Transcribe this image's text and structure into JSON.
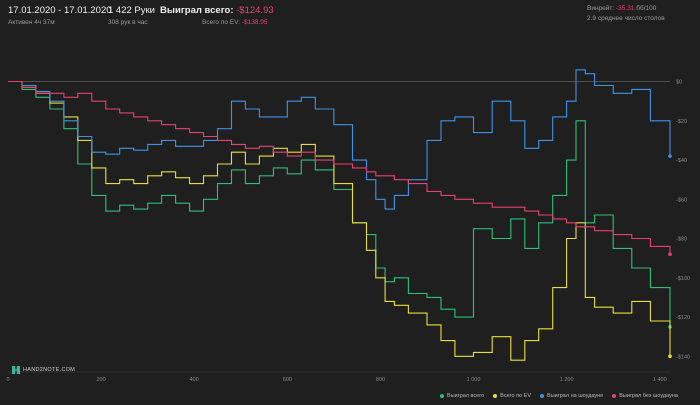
{
  "header": {
    "date_range": "17.01.2020 - 17.01.2020",
    "active": "Активен 4ч 37м",
    "hands": "1 422 Руки",
    "hands_per_hour": "308 рук в час",
    "won_label": "Выиграл всего:",
    "won_value": "-$124.93",
    "ev_label": "Всего по EV:",
    "ev_value": "-$138.95",
    "bb100_label": "Винрейт:",
    "bb100_value": "-35.31",
    "bb100_tail": "бб/100",
    "avg_tables": "2.9 среднее число столов"
  },
  "logo": "HAND2NOTE.COM",
  "colors": {
    "background": "#1f1f1f",
    "green": "#2fbf7a",
    "yellow": "#e8df3a",
    "blue": "#3f93e6",
    "pink": "#e8426e"
  },
  "chart_data": {
    "type": "line",
    "xlim": [
      0,
      1422
    ],
    "ylim": [
      -148,
      12
    ],
    "x_ticks": [
      0,
      200,
      400,
      600,
      800,
      1000,
      1200,
      1400
    ],
    "x_tick_labels": [
      "0",
      "200",
      "400",
      "600",
      "800",
      "1 000",
      "1 200",
      "1 400"
    ],
    "y_ticks": [
      0,
      -20,
      -40,
      -60,
      -80,
      -100,
      -120,
      -140
    ],
    "y_tick_labels": [
      "$0",
      "-$20",
      "-$40",
      "-$60",
      "-$80",
      "-$100",
      "-$120",
      "-$140"
    ],
    "grid": false,
    "legend_position": "bottom-right",
    "series": [
      {
        "name": "Выиграл всего",
        "color": "#2fbf7a",
        "x": [
          0,
          30,
          60,
          90,
          120,
          150,
          180,
          210,
          240,
          270,
          300,
          330,
          360,
          390,
          420,
          450,
          480,
          510,
          540,
          570,
          600,
          630,
          660,
          700,
          740,
          770,
          790,
          810,
          830,
          860,
          900,
          930,
          960,
          1000,
          1040,
          1080,
          1110,
          1140,
          1170,
          1200,
          1220,
          1240,
          1260,
          1300,
          1340,
          1380,
          1422
        ],
        "y": [
          0,
          -4,
          -8,
          -14,
          -24,
          -42,
          -58,
          -66,
          -63,
          -65,
          -62,
          -58,
          -62,
          -66,
          -60,
          -52,
          -45,
          -52,
          -48,
          -44,
          -47,
          -40,
          -45,
          -55,
          -72,
          -78,
          -95,
          -102,
          -100,
          -108,
          -110,
          -116,
          -120,
          -75,
          -80,
          -70,
          -85,
          -72,
          -58,
          -40,
          -20,
          -72,
          -68,
          -85,
          -95,
          -105,
          -125
        ]
      },
      {
        "name": "Всего по EV",
        "color": "#e8df3a",
        "x": [
          0,
          30,
          60,
          90,
          120,
          150,
          180,
          210,
          240,
          270,
          300,
          330,
          360,
          390,
          420,
          450,
          480,
          510,
          540,
          570,
          600,
          630,
          660,
          700,
          740,
          770,
          790,
          810,
          830,
          860,
          900,
          930,
          960,
          1000,
          1040,
          1080,
          1110,
          1140,
          1170,
          1200,
          1220,
          1240,
          1260,
          1300,
          1340,
          1380,
          1422
        ],
        "y": [
          0,
          -3,
          -6,
          -11,
          -18,
          -30,
          -44,
          -52,
          -50,
          -52,
          -48,
          -46,
          -49,
          -52,
          -48,
          -42,
          -36,
          -42,
          -38,
          -34,
          -36,
          -32,
          -38,
          -52,
          -72,
          -86,
          -100,
          -112,
          -114,
          -118,
          -124,
          -132,
          -140,
          -138,
          -130,
          -142,
          -132,
          -126,
          -105,
          -80,
          -72,
          -110,
          -115,
          -118,
          -112,
          -122,
          -140
        ]
      },
      {
        "name": "Выиграл на шоудауне",
        "color": "#3f93e6",
        "x": [
          0,
          30,
          60,
          90,
          120,
          150,
          180,
          210,
          240,
          270,
          300,
          330,
          360,
          390,
          420,
          450,
          480,
          510,
          540,
          570,
          600,
          630,
          660,
          700,
          740,
          770,
          790,
          810,
          830,
          860,
          900,
          930,
          960,
          1000,
          1040,
          1080,
          1110,
          1140,
          1170,
          1200,
          1220,
          1240,
          1260,
          1300,
          1340,
          1380,
          1422
        ],
        "y": [
          0,
          -2,
          -5,
          -10,
          -20,
          -28,
          -36,
          -37,
          -34,
          -35,
          -32,
          -30,
          -33,
          -33,
          -30,
          -24,
          -10,
          -14,
          -18,
          -18,
          -10,
          -8,
          -14,
          -22,
          -40,
          -50,
          -60,
          -65,
          -58,
          -50,
          -30,
          -20,
          -18,
          -26,
          -10,
          -20,
          -34,
          -30,
          -18,
          -10,
          6,
          4,
          -2,
          -6,
          -4,
          -20,
          -38
        ]
      },
      {
        "name": "Выиграл без шоудауна",
        "color": "#e8426e",
        "x": [
          0,
          30,
          60,
          90,
          120,
          150,
          180,
          210,
          240,
          270,
          300,
          330,
          360,
          390,
          420,
          450,
          480,
          510,
          540,
          570,
          600,
          630,
          660,
          700,
          740,
          770,
          790,
          810,
          830,
          860,
          900,
          930,
          960,
          1000,
          1040,
          1080,
          1110,
          1140,
          1170,
          1200,
          1220,
          1240,
          1260,
          1300,
          1340,
          1380,
          1422
        ],
        "y": [
          0,
          -3,
          -6,
          -6,
          -8,
          -6,
          -10,
          -14,
          -16,
          -18,
          -20,
          -22,
          -24,
          -26,
          -28,
          -30,
          -32,
          -34,
          -33,
          -36,
          -38,
          -36,
          -40,
          -42,
          -44,
          -46,
          -48,
          -48,
          -50,
          -52,
          -56,
          -58,
          -60,
          -62,
          -64,
          -64,
          -66,
          -68,
          -70,
          -72,
          -74,
          -74,
          -76,
          -78,
          -80,
          -84,
          -88
        ]
      }
    ]
  }
}
